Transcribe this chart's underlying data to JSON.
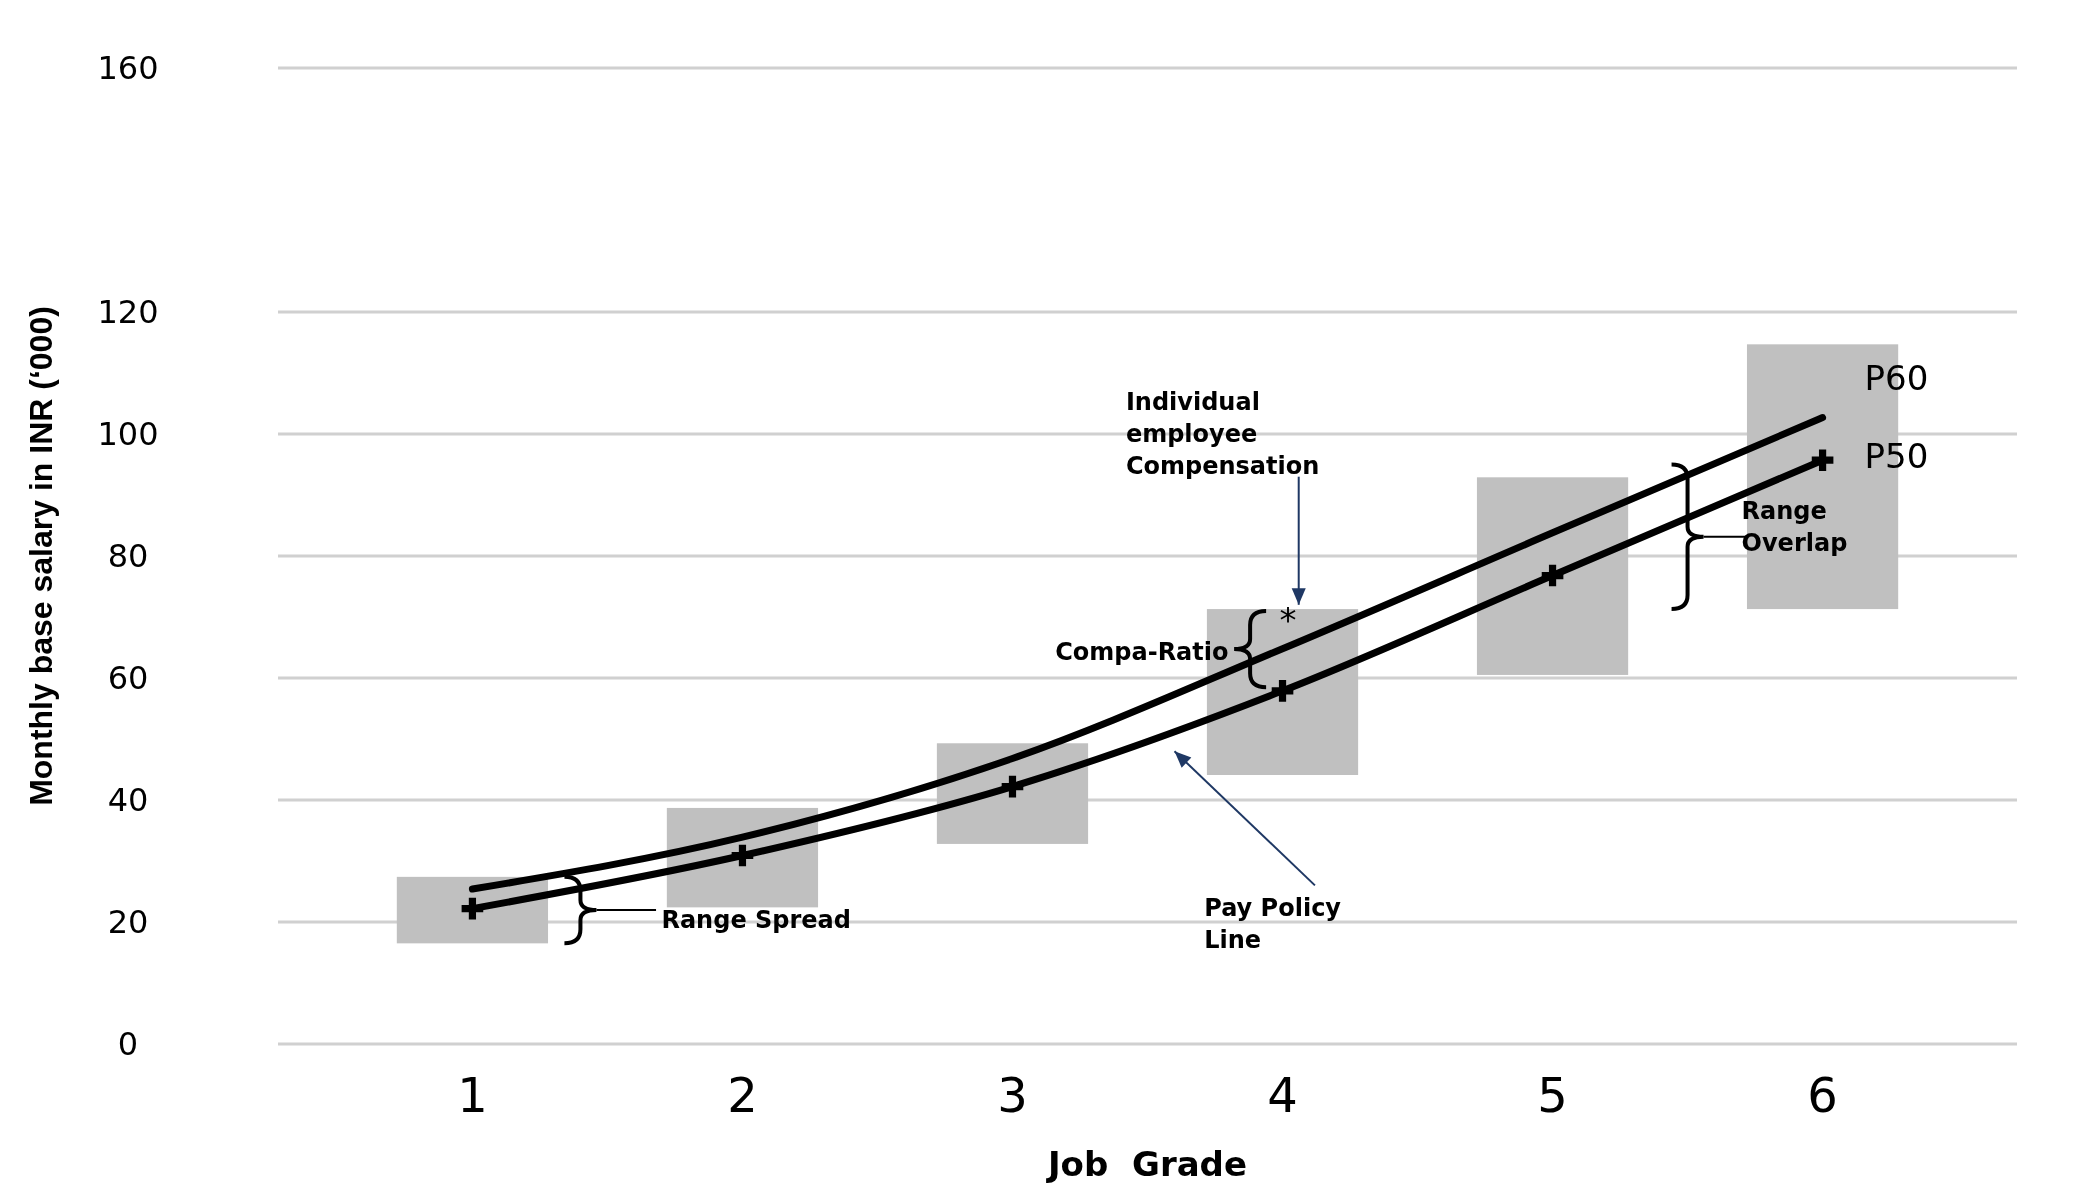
{
  "chart_data": {
    "type": "bar",
    "xlabel": "Job  Grade",
    "ylabel": "Monthly base salary in INR (‘000)",
    "categories": [
      "1",
      "2",
      "3",
      "4",
      "5",
      "6"
    ],
    "ylim": [
      0,
      160
    ],
    "yticks": [
      0,
      20,
      40,
      60,
      80,
      100,
      120,
      160
    ],
    "grid": "y",
    "series": [
      {
        "color": "#c0c0c0",
        "base": [
          16.5,
          22.4,
          32.8,
          44.1,
          60.5,
          71.3
        ],
        "values": [
          10.9,
          16.3,
          16.5,
          27.2,
          32.4,
          43.4
        ]
      },
      {
        "type": "line",
        "name": "P60",
        "color": "#000000",
        "marker": "none",
        "values": [
          25.4,
          33.9,
          46.8,
          64.8,
          83.8,
          102.7
        ]
      },
      {
        "type": "line",
        "name": "P50",
        "color": "#000000",
        "marker": "cross",
        "values": [
          22.2,
          30.9,
          42.2,
          57.9,
          76.8,
          95.7
        ]
      }
    ],
    "annotations": [
      "Individual employee Compensation",
      "Compa-Ratio",
      "Range Spread",
      "Pay Policy Line",
      "Range Overlap",
      "*"
    ]
  }
}
